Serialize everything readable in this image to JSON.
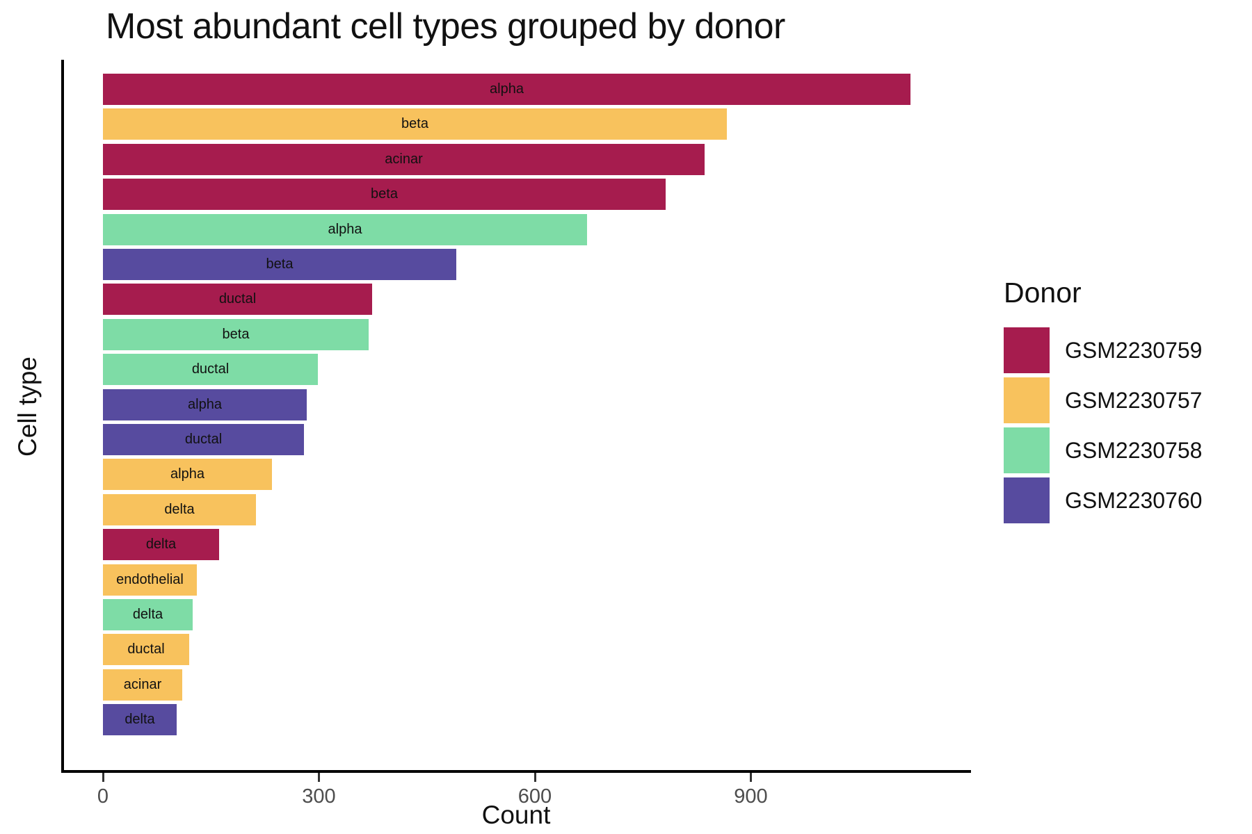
{
  "title": "Most abundant cell types grouped by donor",
  "axes": {
    "x_label": "Count",
    "y_label": "Cell type",
    "x_ticks": [
      0,
      300,
      600,
      900
    ],
    "x_range": [
      0,
      1210
    ]
  },
  "legend": {
    "title": "Donor",
    "entries": [
      {
        "label": "GSM2230759",
        "color": "#A61C4E"
      },
      {
        "label": "GSM2230757",
        "color": "#F8C25D"
      },
      {
        "label": "GSM2230758",
        "color": "#7EDCA6"
      },
      {
        "label": "GSM2230760",
        "color": "#574B9F"
      }
    ]
  },
  "chart_data": {
    "type": "bar",
    "orientation": "horizontal",
    "title": "Most abundant cell types grouped by donor",
    "xlabel": "Count",
    "ylabel": "Cell type",
    "xlim": [
      0,
      1210
    ],
    "x_ticks": [
      0,
      300,
      600,
      900
    ],
    "grid": false,
    "legend_position": "right",
    "bar_text_position": "center",
    "bars": [
      {
        "cell_type": "alpha",
        "donor": "GSM2230759",
        "count": 1122
      },
      {
        "cell_type": "beta",
        "donor": "GSM2230757",
        "count": 867
      },
      {
        "cell_type": "acinar",
        "donor": "GSM2230759",
        "count": 836
      },
      {
        "cell_type": "beta",
        "donor": "GSM2230759",
        "count": 782
      },
      {
        "cell_type": "alpha",
        "donor": "GSM2230758",
        "count": 672
      },
      {
        "cell_type": "beta",
        "donor": "GSM2230760",
        "count": 491
      },
      {
        "cell_type": "ductal",
        "donor": "GSM2230759",
        "count": 374
      },
      {
        "cell_type": "beta",
        "donor": "GSM2230758",
        "count": 369
      },
      {
        "cell_type": "ductal",
        "donor": "GSM2230758",
        "count": 299
      },
      {
        "cell_type": "alpha",
        "donor": "GSM2230760",
        "count": 283
      },
      {
        "cell_type": "ductal",
        "donor": "GSM2230760",
        "count": 279
      },
      {
        "cell_type": "alpha",
        "donor": "GSM2230757",
        "count": 235
      },
      {
        "cell_type": "delta",
        "donor": "GSM2230757",
        "count": 213
      },
      {
        "cell_type": "delta",
        "donor": "GSM2230759",
        "count": 161
      },
      {
        "cell_type": "endothelial",
        "donor": "GSM2230757",
        "count": 130
      },
      {
        "cell_type": "delta",
        "donor": "GSM2230758",
        "count": 125
      },
      {
        "cell_type": "ductal",
        "donor": "GSM2230757",
        "count": 120
      },
      {
        "cell_type": "acinar",
        "donor": "GSM2230757",
        "count": 110
      },
      {
        "cell_type": "delta",
        "donor": "GSM2230760",
        "count": 102
      }
    ]
  }
}
